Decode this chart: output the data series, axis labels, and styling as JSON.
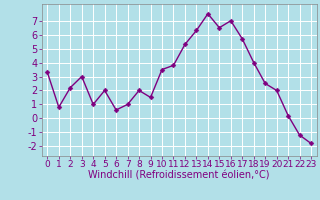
{
  "x": [
    0,
    1,
    2,
    3,
    4,
    5,
    6,
    7,
    8,
    9,
    10,
    11,
    12,
    13,
    14,
    15,
    16,
    17,
    18,
    19,
    20,
    21,
    22,
    23
  ],
  "y": [
    3.3,
    0.8,
    2.2,
    3.0,
    1.0,
    2.0,
    0.6,
    1.0,
    2.0,
    1.5,
    3.5,
    3.8,
    5.3,
    6.3,
    7.5,
    6.5,
    7.0,
    5.7,
    4.0,
    2.5,
    2.0,
    0.2,
    -1.2,
    -1.8
  ],
  "line_color": "#800080",
  "marker_color": "#800080",
  "bg_color": "#b2e0e8",
  "grid_color": "#ffffff",
  "xlabel": "Windchill (Refroidissement éolien,°C)",
  "xlim": [
    -0.5,
    23.5
  ],
  "ylim": [
    -2.7,
    8.2
  ],
  "yticks": [
    -2,
    -1,
    0,
    1,
    2,
    3,
    4,
    5,
    6,
    7
  ],
  "xtick_labels": [
    "0",
    "1",
    "2",
    "3",
    "4",
    "5",
    "6",
    "7",
    "8",
    "9",
    "10",
    "11",
    "12",
    "13",
    "14",
    "15",
    "16",
    "17",
    "18",
    "19",
    "20",
    "21",
    "22",
    "23"
  ],
  "font_color": "#800080",
  "tick_fontsize": 6.5,
  "xlabel_fontsize": 7,
  "marker_size": 2.5,
  "line_width": 1.0
}
